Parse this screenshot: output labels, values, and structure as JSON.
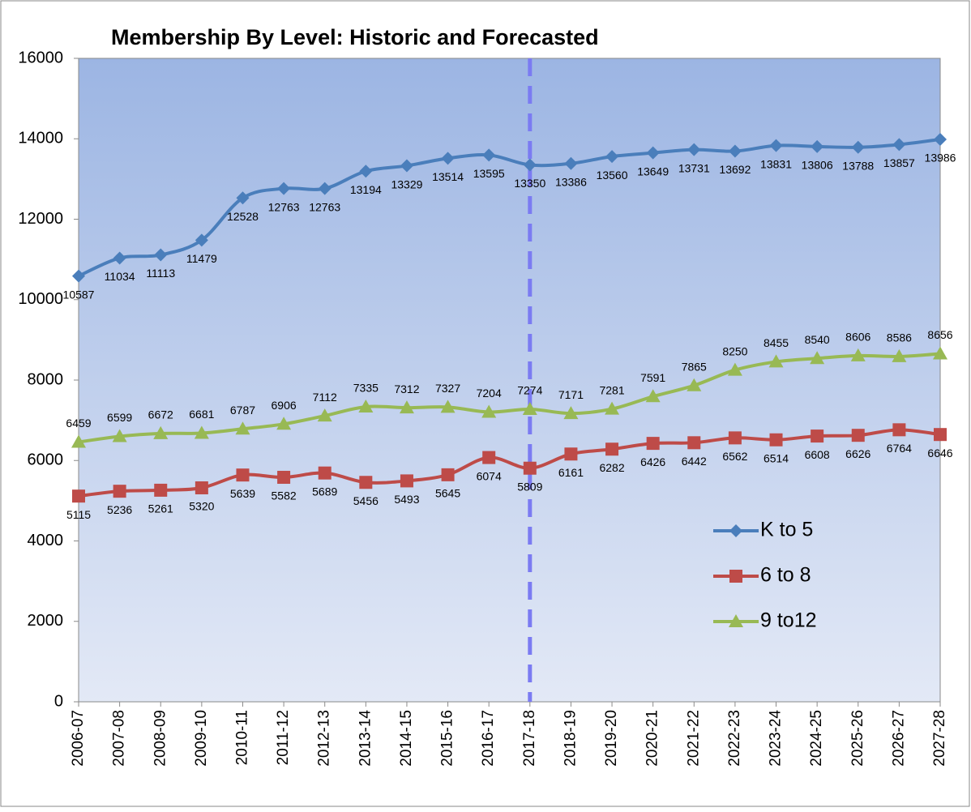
{
  "chart_data": {
    "type": "line",
    "title": "Membership By Level: Historic and Forecasted",
    "categories": [
      "2006-07",
      "2007-08",
      "2008-09",
      "2009-10",
      "2010-11",
      "2011-12",
      "2012-13",
      "2013-14",
      "2014-15",
      "2015-16",
      "2016-17",
      "2017-18",
      "2018-19",
      "2019-20",
      "2020-21",
      "2021-22",
      "2022-23",
      "2023-24",
      "2024-25",
      "2025-26",
      "2026-27",
      "2027-28"
    ],
    "series": [
      {
        "name": "K to 5",
        "color": "#4a7ebb",
        "marker": "diamond",
        "label_side": "below",
        "values": [
          10587,
          11034,
          11113,
          11479,
          12528,
          12763,
          12763,
          13194,
          13329,
          13514,
          13595,
          13350,
          13386,
          13560,
          13649,
          13731,
          13692,
          13831,
          13806,
          13788,
          13857,
          13986
        ]
      },
      {
        "name": "6 to 8",
        "color": "#be4b48",
        "marker": "square",
        "label_side": "below",
        "values": [
          5115,
          5236,
          5261,
          5320,
          5639,
          5582,
          5689,
          5456,
          5493,
          5645,
          6074,
          5809,
          6161,
          6282,
          6426,
          6442,
          6562,
          6514,
          6608,
          6626,
          6764,
          6646
        ]
      },
      {
        "name": "9 to12",
        "color": "#98b954",
        "marker": "triangle",
        "label_side": "above",
        "values": [
          6459,
          6599,
          6672,
          6681,
          6787,
          6906,
          7112,
          7335,
          7312,
          7327,
          7204,
          7274,
          7171,
          7281,
          7591,
          7865,
          8250,
          8455,
          8540,
          8606,
          8586,
          8656
        ]
      }
    ],
    "ylim": [
      0,
      16000
    ],
    "yticks": [
      0,
      2000,
      4000,
      6000,
      8000,
      10000,
      12000,
      14000,
      16000
    ],
    "grid": false,
    "legend": "right",
    "smooth": true
  }
}
